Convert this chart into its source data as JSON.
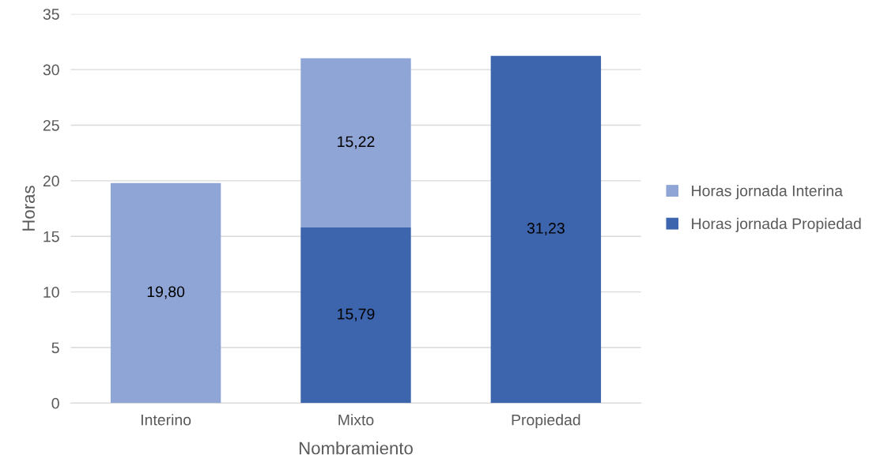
{
  "chart_data": {
    "type": "bar",
    "stacked": true,
    "xlabel": "Nombramiento",
    "ylabel": "Horas",
    "categories": [
      "Interino",
      "Mixto",
      "Propiedad"
    ],
    "series": [
      {
        "name": "Horas jornada Propiedad",
        "color": "#3d65ad",
        "values": [
          null,
          15.79,
          31.23
        ],
        "value_labels": [
          null,
          "15,79",
          "31,23"
        ]
      },
      {
        "name": "Horas jornada Interina",
        "color": "#8fa5d5",
        "values": [
          19.8,
          15.22,
          null
        ],
        "value_labels": [
          "19,80",
          "15,22",
          null
        ]
      }
    ],
    "ylim": [
      0,
      35
    ],
    "yticks": [
      0,
      5,
      10,
      15,
      20,
      25,
      30,
      35
    ],
    "grid": "y",
    "legend": "right"
  }
}
